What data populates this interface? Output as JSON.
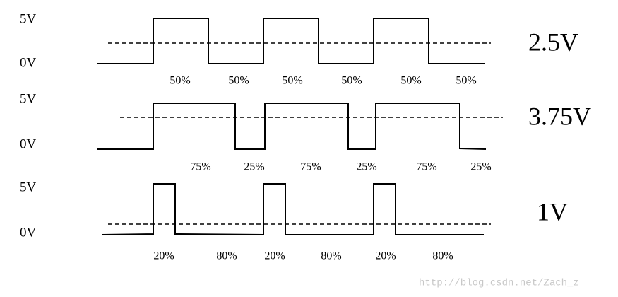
{
  "rows": [
    {
      "high_label": "5V",
      "low_label": "0V",
      "average": "2.5V",
      "duties": [
        "50%",
        "50%",
        "50%",
        "50%",
        "50%",
        "50%"
      ]
    },
    {
      "high_label": "5V",
      "low_label": "0V",
      "average": "3.75V",
      "duties": [
        "75%",
        "25%",
        "75%",
        "25%",
        "75%",
        "25%"
      ]
    },
    {
      "high_label": "5V",
      "low_label": "0V",
      "average": "1V",
      "duties": [
        "20%",
        "80%",
        "20%",
        "80%",
        "20%",
        "80%"
      ]
    }
  ],
  "watermark": "http://blog.csdn.net/Zach_z"
}
